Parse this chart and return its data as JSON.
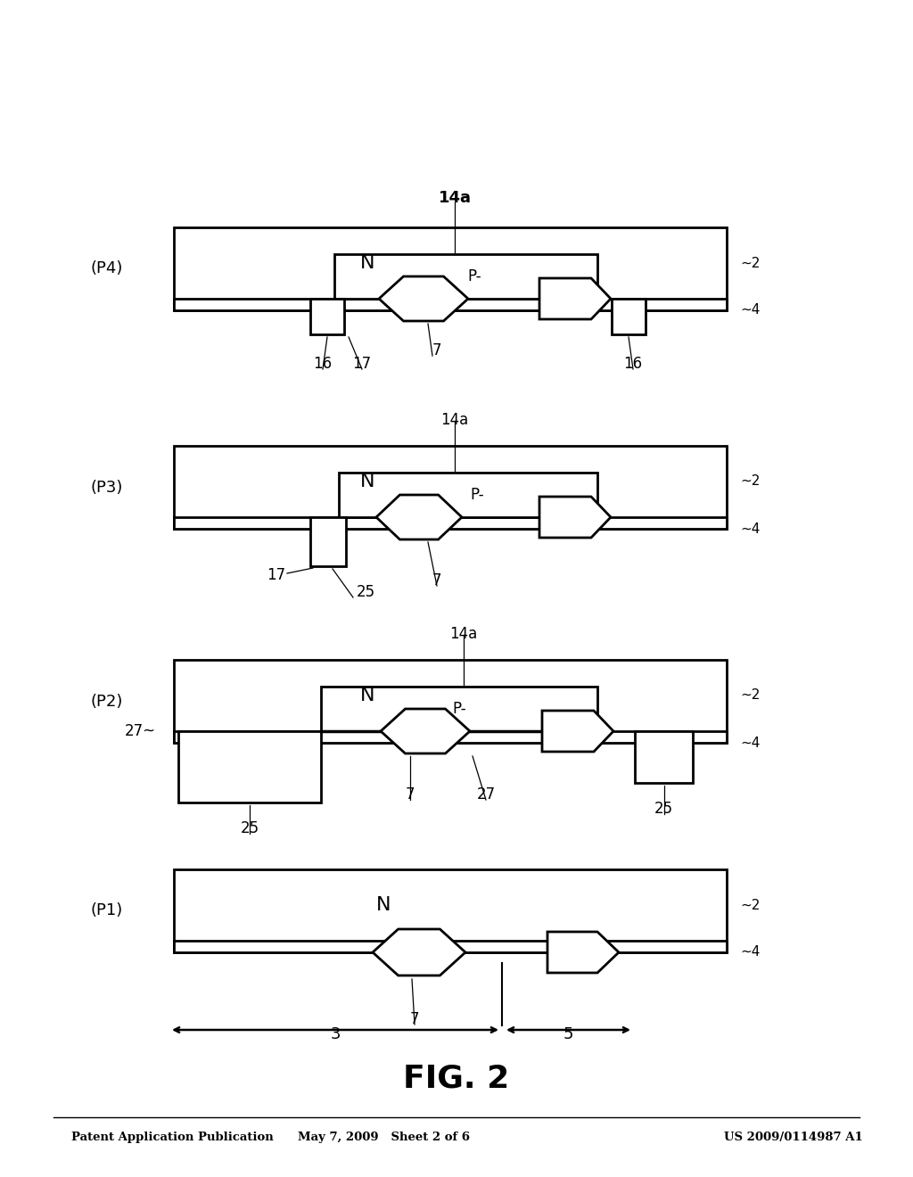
{
  "title": "FIG. 2",
  "header_left": "Patent Application Publication",
  "header_mid": "May 7, 2009   Sheet 2 of 6",
  "header_right": "US 2009/0114987 A1",
  "bg_color": "#ffffff",
  "line_color": "#000000",
  "fig_width": 10.24,
  "fig_height": 13.2,
  "dpi": 100
}
